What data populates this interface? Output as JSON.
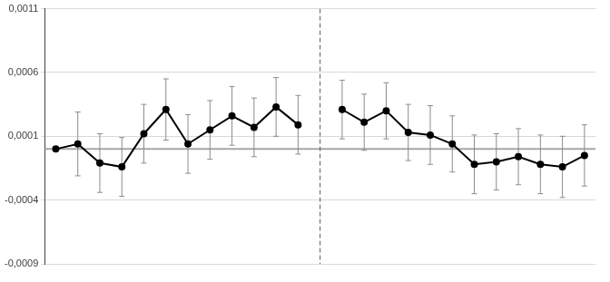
{
  "chart_data": {
    "type": "line",
    "categories": [
      null,
      null,
      null,
      null,
      null,
      null,
      null,
      null,
      null,
      null,
      null,
      null,
      null,
      null,
      null,
      null,
      null,
      null,
      null,
      null,
      null,
      null,
      null,
      null,
      null
    ],
    "series": [
      {
        "color": "#000000",
        "marker": "circle",
        "values": [
          0,
          4e-05,
          -0.00011,
          -0.00014,
          0.00012,
          0.00031,
          4e-05,
          0.00015,
          0.00026,
          0.00017,
          0.00033,
          0.00019,
          null,
          0.00031,
          0.00021,
          0.0003,
          0.00013,
          0.00011,
          4e-05,
          -0.00012,
          -0.0001,
          -6e-05,
          -0.00012,
          -0.00014,
          -5e-05
        ],
        "errors": [
          null,
          0.00025,
          0.00023,
          0.00023,
          0.00023,
          0.00024,
          0.00023,
          0.00023,
          0.00023,
          0.00023,
          0.00023,
          0.00023,
          null,
          0.00023,
          0.00022,
          0.00022,
          0.00022,
          0.00023,
          0.00022,
          0.00023,
          0.00022,
          0.00022,
          0.00023,
          0.00024,
          0.00024
        ]
      }
    ],
    "ylim": [
      -0.0009,
      0.0011
    ],
    "yticks": [
      {
        "value": -0.0009,
        "label": "-0,0009"
      },
      {
        "value": -0.0004,
        "label": "-0,0004"
      },
      {
        "value": 0.0001,
        "label": "0,0001"
      },
      {
        "value": 0.0006,
        "label": "0,0006"
      },
      {
        "value": 0.0011,
        "label": "0,0011"
      }
    ],
    "grid": true,
    "tick_labels": "y",
    "reference_line": 0
  }
}
